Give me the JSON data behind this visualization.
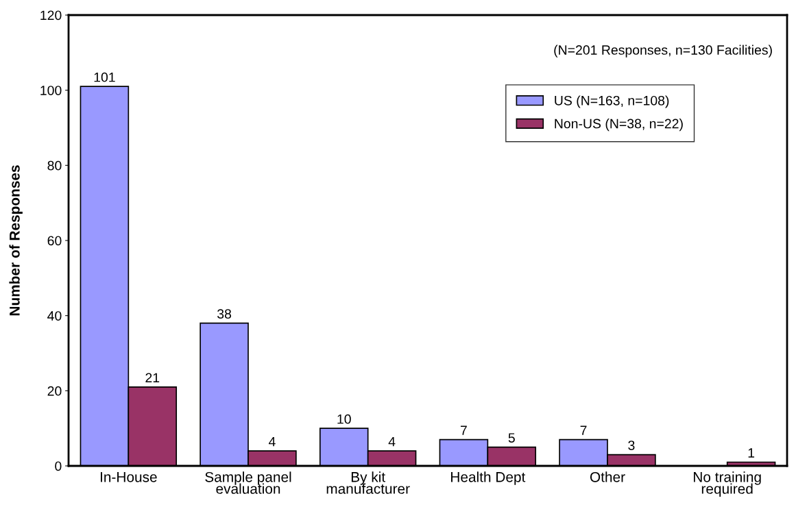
{
  "chart_data": {
    "type": "bar",
    "ylabel": "Number of Responses",
    "categories": [
      "In-House",
      "Sample panel\nevaluation",
      "By kit\nmanufacturer",
      "Health Dept",
      "Other",
      "No training\nrequired"
    ],
    "series": [
      {
        "name": "US (N=163, n=108)",
        "color": "#9999ff",
        "values": [
          101,
          38,
          10,
          7,
          7,
          null
        ],
        "value_labels": [
          "101",
          "38",
          "10",
          "7",
          "7",
          null
        ]
      },
      {
        "name": "Non-US (N=38, n=22)",
        "color": "#993366",
        "values": [
          21,
          4,
          4,
          5,
          3,
          1
        ],
        "value_labels": [
          "21",
          "4",
          "4",
          "5",
          "3",
          "1"
        ]
      }
    ],
    "ylim": [
      0,
      120
    ],
    "yticks": [
      0,
      20,
      40,
      60,
      80,
      100,
      120
    ],
    "annotations": [
      "(N=201 Responses, n=130 Facilities)"
    ],
    "grid": false,
    "legend": "top right"
  }
}
